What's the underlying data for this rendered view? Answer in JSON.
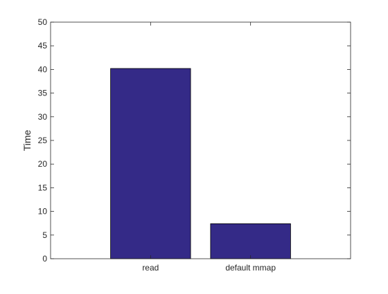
{
  "chart_data": {
    "type": "bar",
    "categories": [
      "read",
      "default mmap"
    ],
    "values": [
      40.2,
      7.4
    ],
    "title": "",
    "xlabel": "",
    "ylabel": "Time",
    "ylim": [
      0,
      50
    ],
    "yticks": [
      "0",
      "5",
      "10",
      "15",
      "20",
      "25",
      "30",
      "35",
      "40",
      "45",
      "50"
    ],
    "grid": false,
    "bar_color": "#342a87",
    "edge_color": "#000000"
  }
}
